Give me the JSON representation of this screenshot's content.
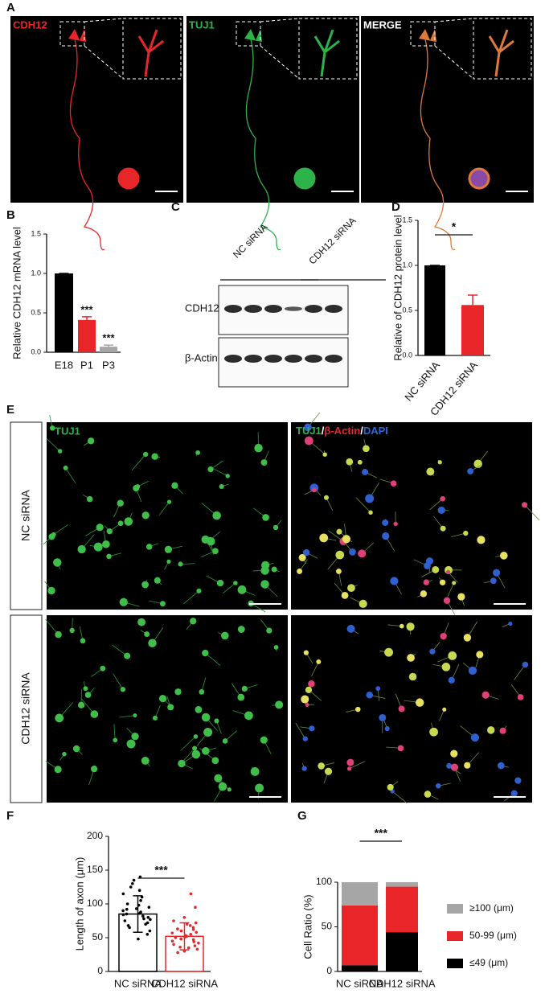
{
  "panel_labels": [
    "A",
    "B",
    "C",
    "D",
    "E",
    "F",
    "G"
  ],
  "panel_a": {
    "channels": [
      "CDH12",
      "TUJ1",
      "MERGE"
    ]
  },
  "panel_c": {
    "groups": [
      "NC siRNA",
      "CDH12 siRNA"
    ],
    "bands": [
      "CDH12",
      "β-Actin"
    ]
  },
  "panel_e": {
    "rows": [
      "NC siRNA",
      "CDH12 siRNA"
    ],
    "left_label": "TUJ1",
    "right_label": [
      "TUJ1",
      "/",
      "β-Actin",
      "/",
      "DAPI"
    ]
  },
  "chart_data": [
    {
      "type": "bar",
      "ylabel": "Relative CDH12 mRNA level",
      "categories": [
        "E18",
        "P1",
        "P3"
      ],
      "values": [
        1,
        0.41,
        0.07
      ],
      "errors": [
        0,
        0.04,
        0.02
      ],
      "error_direction": "up",
      "colors": [
        "#000000",
        "#e8262a",
        "#a6a6a6"
      ],
      "style": "filled",
      "ylim": [
        0,
        1.5
      ],
      "yticks": [
        {
          "value": 0,
          "label": "0.0"
        },
        {
          "value": 0.5,
          "label": "0.5"
        },
        {
          "value": 1,
          "label": "1.0"
        },
        {
          "value": 1.5,
          "label": "1.5"
        }
      ],
      "annotations": [
        "***",
        "***"
      ]
    },
    {
      "type": "bar",
      "ylabel": "Relative of CDH12 protein level",
      "categories": [
        "NC siRNA",
        "CDH12 siRNA"
      ],
      "values": [
        1,
        0.56
      ],
      "errors": [
        0,
        0.11
      ],
      "error_direction": "up",
      "colors": [
        "#000000",
        "#e8262a"
      ],
      "style": "filled",
      "ylim": [
        0,
        1.5
      ],
      "yticks": [
        {
          "value": 0,
          "label": "0.0"
        },
        {
          "value": 0.5,
          "label": "0.5"
        },
        {
          "value": 1,
          "label": "1.0"
        },
        {
          "value": 1.5,
          "label": "1.5"
        }
      ],
      "annotations": [
        "*"
      ]
    },
    {
      "type": "bar",
      "ylabel": "Length of axon (μm)",
      "categories": [
        "NC siRNA",
        "CDH12 siRNA"
      ],
      "values": [
        85,
        52
      ],
      "errors": [
        27,
        20
      ],
      "error_direction": "both",
      "colors": [
        "#000000",
        "#e8262a"
      ],
      "style": "outline",
      "points": [
        [
          60,
          65,
          70,
          72,
          75,
          78,
          80,
          82,
          84,
          85,
          86,
          88,
          90,
          92,
          95,
          98,
          100,
          105,
          110,
          115,
          120,
          125,
          130,
          135,
          140,
          48,
          55,
          68,
          77,
          93
        ],
        [
          30,
          33,
          35,
          38,
          40,
          42,
          45,
          47,
          48,
          50,
          52,
          53,
          55,
          57,
          58,
          60,
          62,
          65,
          68,
          70,
          72,
          75,
          80,
          95,
          115,
          28,
          36,
          44,
          51,
          63
        ]
      ],
      "ylim": [
        0,
        200
      ],
      "yticks": [
        0,
        50,
        100,
        150,
        200
      ],
      "annotations": [
        "***"
      ]
    },
    {
      "type": "stacked_bar",
      "ylabel": "Cell Ratio (%)",
      "categories": [
        "NC siRNA",
        "CDH12 siRNA"
      ],
      "series": [
        {
          "name": "≤49 (μm)",
          "color": "#000000",
          "values": [
            7,
            44
          ]
        },
        {
          "name": "50-99 (μm)",
          "color": "#e8262a",
          "values": [
            67,
            51
          ]
        },
        {
          "name": "≥100 (μm)",
          "color": "#a6a6a6",
          "values": [
            26,
            5
          ]
        }
      ],
      "ylim": [
        0,
        100
      ],
      "yticks": [
        0,
        50,
        100
      ],
      "annotations": [
        "***"
      ]
    }
  ]
}
